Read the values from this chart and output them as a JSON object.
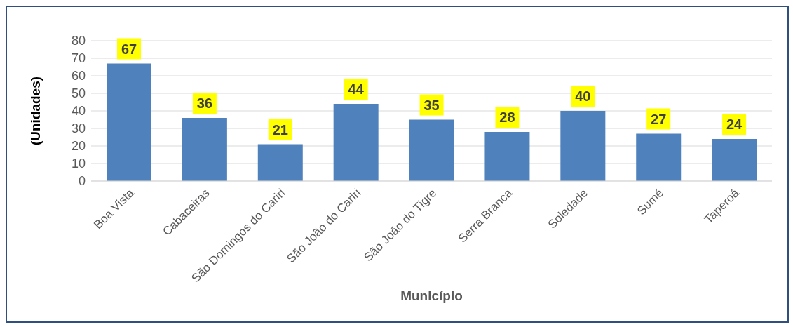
{
  "chart_data": {
    "type": "bar",
    "xlabel": "Município",
    "ylabel": "(Unidades)",
    "categories": [
      "Boa Vista",
      "Cabaceiras",
      "São Domingos do Cariri",
      "São João do Cariri",
      "São João do Tigre",
      "Serra Branca",
      "Soledade",
      "Sumé",
      "Taperoá"
    ],
    "values": [
      67,
      36,
      21,
      44,
      35,
      28,
      40,
      27,
      24
    ],
    "color": "#4f81bd",
    "ylim": [
      0,
      80
    ],
    "yticks": [
      0,
      10,
      20,
      30,
      40,
      50,
      60,
      70,
      80
    ],
    "grid": "y",
    "data_labels": true
  }
}
